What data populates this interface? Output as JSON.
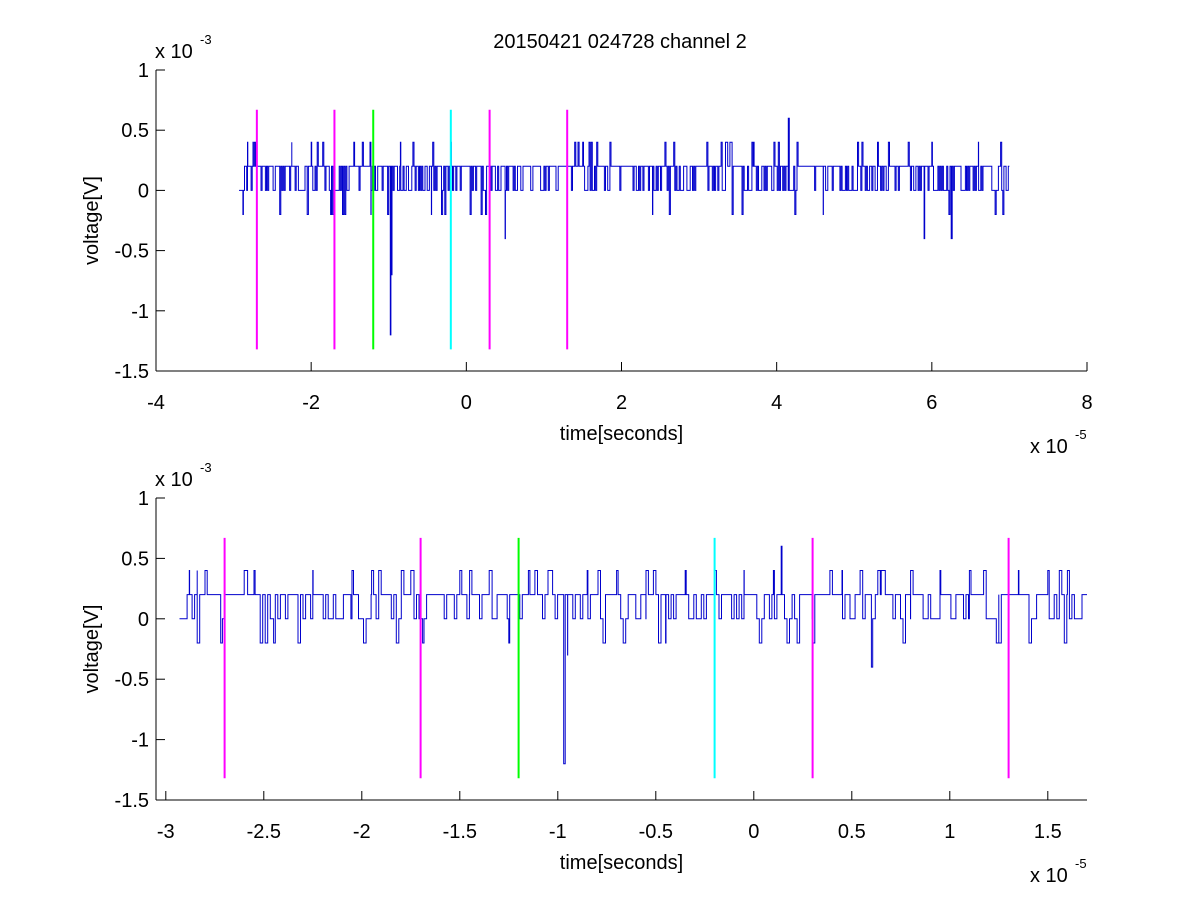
{
  "figure": {
    "title": "20150421 024728 channel 2",
    "background": "#ffffff",
    "trace_color": "#0000cc",
    "marker_colors": {
      "magenta": "#ff00ff",
      "green": "#00ff00",
      "cyan": "#00ffff"
    }
  },
  "chart_data": [
    {
      "type": "line",
      "title": "20150421 024728 channel 2",
      "xlabel": "time[seconds]",
      "ylabel": "voltage[V]",
      "x_exponent_label": "x 10",
      "x_exponent": "-5",
      "y_exponent_label": "x 10",
      "y_exponent": "-3",
      "xlim": [
        -4,
        8
      ],
      "ylim": [
        -1.5,
        1
      ],
      "xticks": [
        -4,
        -2,
        0,
        2,
        4,
        6,
        8
      ],
      "xtick_labels": [
        "-4",
        "-2",
        "0",
        "2",
        "4",
        "6",
        "8"
      ],
      "yticks": [
        -1.5,
        -1,
        -0.5,
        0,
        0.5,
        1
      ],
      "ytick_labels": [
        "-1.5",
        "-1",
        "-0.5",
        "0",
        "0.5",
        "1"
      ],
      "grid": false,
      "series": [
        {
          "color": "#0000cc",
          "x_range": [
            -2.93,
            7.0
          ],
          "y_level_top": 0.2,
          "y_level_base": 0.0,
          "spikes": [
            {
              "x": -2.88,
              "y": -0.2
            },
            {
              "x": -2.82,
              "y": 0.4
            },
            {
              "x": -2.75,
              "y": 0.4
            },
            {
              "x": -2.25,
              "y": 0.4
            },
            {
              "x": -2.0,
              "y": 0.4
            },
            {
              "x": -1.75,
              "y": -0.2
            },
            {
              "x": -1.45,
              "y": 0.4
            },
            {
              "x": -1.23,
              "y": -0.2
            },
            {
              "x": -0.98,
              "y": -1.2
            },
            {
              "x": -0.97,
              "y": -0.7
            },
            {
              "x": -0.85,
              "y": 0.4
            },
            {
              "x": -0.45,
              "y": -0.2
            },
            {
              "x": -0.2,
              "y": 0.4
            },
            {
              "x": 0.5,
              "y": -0.4
            },
            {
              "x": 1.5,
              "y": 0.4
            },
            {
              "x": 2.4,
              "y": -0.2
            },
            {
              "x": 3.7,
              "y": 0.4
            },
            {
              "x": 4.15,
              "y": 0.6
            },
            {
              "x": 4.6,
              "y": -0.2
            },
            {
              "x": 5.3,
              "y": 0.4
            },
            {
              "x": 5.9,
              "y": -0.4
            },
            {
              "x": 6.0,
              "y": 0.4
            },
            {
              "x": 6.25,
              "y": -0.4
            },
            {
              "x": 6.6,
              "y": 0.4
            }
          ]
        }
      ],
      "markers": [
        {
          "x": -2.7,
          "color": "#ff00ff"
        },
        {
          "x": -1.7,
          "color": "#ff00ff"
        },
        {
          "x": -1.2,
          "color": "#00ff00"
        },
        {
          "x": -0.2,
          "color": "#00ffff"
        },
        {
          "x": 0.3,
          "color": "#ff00ff"
        },
        {
          "x": 1.3,
          "color": "#ff00ff"
        }
      ],
      "marker_y_range": [
        -1.32,
        0.67
      ]
    },
    {
      "type": "line",
      "xlabel": "time[seconds]",
      "ylabel": "voltage[V]",
      "x_exponent_label": "x 10",
      "x_exponent": "-5",
      "y_exponent_label": "x 10",
      "y_exponent": "-3",
      "xlim": [
        -3.05,
        1.7
      ],
      "ylim": [
        -1.5,
        1
      ],
      "xticks": [
        -3,
        -2.5,
        -2,
        -1.5,
        -1,
        -0.5,
        0,
        0.5,
        1,
        1.5
      ],
      "xtick_labels": [
        "-3",
        "-2.5",
        "-2",
        "-1.5",
        "-1",
        "-0.5",
        "0",
        "0.5",
        "1",
        "1.5"
      ],
      "yticks": [
        -1.5,
        -1,
        -0.5,
        0,
        0.5,
        1
      ],
      "ytick_labels": [
        "-1.5",
        "-1",
        "-0.5",
        "0",
        "0.5",
        "1"
      ],
      "grid": false,
      "series": [
        {
          "color": "#0000cc",
          "x_range": [
            -2.93,
            1.7
          ],
          "y_level_top": 0.2,
          "y_level_base": 0.0,
          "spikes": [
            {
              "x": -2.88,
              "y": 0.4
            },
            {
              "x": -2.84,
              "y": 0.4
            },
            {
              "x": -2.8,
              "y": 0.4
            },
            {
              "x": -2.72,
              "y": -0.2
            },
            {
              "x": -2.6,
              "y": 0.4
            },
            {
              "x": -2.55,
              "y": 0.4
            },
            {
              "x": -2.45,
              "y": -0.2
            },
            {
              "x": -2.25,
              "y": 0.4
            },
            {
              "x": -2.05,
              "y": 0.4
            },
            {
              "x": -1.95,
              "y": 0.4
            },
            {
              "x": -1.75,
              "y": 0.4
            },
            {
              "x": -1.69,
              "y": -0.2
            },
            {
              "x": -1.5,
              "y": 0.4
            },
            {
              "x": -1.45,
              "y": 0.4
            },
            {
              "x": -1.35,
              "y": 0.4
            },
            {
              "x": -1.25,
              "y": -0.2
            },
            {
              "x": -1.15,
              "y": 0.4
            },
            {
              "x": -1.05,
              "y": 0.4
            },
            {
              "x": -1.0,
              "y": 0.2
            },
            {
              "x": -0.97,
              "y": -1.2
            },
            {
              "x": -0.95,
              "y": -0.3
            },
            {
              "x": -0.85,
              "y": 0.4
            },
            {
              "x": -0.7,
              "y": 0.4
            },
            {
              "x": -0.55,
              "y": 0.4
            },
            {
              "x": -0.45,
              "y": -0.2
            },
            {
              "x": -0.35,
              "y": 0.4
            },
            {
              "x": -0.2,
              "y": 0.4
            },
            {
              "x": -0.05,
              "y": 0.4
            },
            {
              "x": 0.1,
              "y": 0.4
            },
            {
              "x": 0.14,
              "y": 0.6
            },
            {
              "x": 0.3,
              "y": -0.2
            },
            {
              "x": 0.45,
              "y": 0.4
            },
            {
              "x": 0.6,
              "y": -0.4
            },
            {
              "x": 0.65,
              "y": 0.4
            },
            {
              "x": 0.8,
              "y": 0.4
            },
            {
              "x": 0.95,
              "y": 0.4
            },
            {
              "x": 1.1,
              "y": 0.4
            },
            {
              "x": 1.25,
              "y": -0.2
            },
            {
              "x": 1.35,
              "y": 0.4
            },
            {
              "x": 1.5,
              "y": 0.4
            },
            {
              "x": 1.6,
              "y": 0.4
            }
          ]
        }
      ],
      "markers": [
        {
          "x": -2.7,
          "color": "#ff00ff"
        },
        {
          "x": -1.7,
          "color": "#ff00ff"
        },
        {
          "x": -1.2,
          "color": "#00ff00"
        },
        {
          "x": -0.2,
          "color": "#00ffff"
        },
        {
          "x": 0.3,
          "color": "#ff00ff"
        },
        {
          "x": 1.3,
          "color": "#ff00ff"
        }
      ],
      "marker_y_range": [
        -1.32,
        0.67
      ]
    }
  ]
}
